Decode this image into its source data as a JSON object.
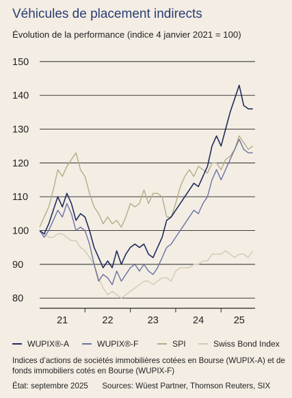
{
  "title": "Véhicules de placement indirects",
  "subtitle": "Évolution de la performance (indice 4 janvier 2021 = 100)",
  "note": "Indices d’actions de sociétés immobilières cotées en Bourse (WUPIX-A) et de fonds immobiliers cotés en Bourse (WUPIX-F)",
  "status": "État: septembre 2025",
  "sources": "Sources: Wüest Partner, Thomson Reuters, SIX",
  "chart_data": {
    "type": "line",
    "title": "Véhicules de placement indirects",
    "subtitle": "Évolution de la performance (indice 4 janvier 2021 = 100)",
    "xlabel": "",
    "ylabel": "",
    "xlim": [
      2021.0,
      2025.75
    ],
    "ylim": [
      77,
      152
    ],
    "yticks": [
      80,
      90,
      100,
      110,
      120,
      130,
      140,
      150
    ],
    "xticks": [
      {
        "label": "21",
        "x": 2021.5
      },
      {
        "label": "22",
        "x": 2022.5
      },
      {
        "label": "23",
        "x": 2023.5
      },
      {
        "label": "24",
        "x": 2024.5
      },
      {
        "label": "25",
        "x": 2025.4
      }
    ],
    "grid": "horizontal",
    "legend": "bottom",
    "colors": {
      "WUPIX-A": "#1e2a5a",
      "WUPIX-F": "#6a70a0",
      "SPI": "#b4ad86",
      "Swiss Bond Index": "#d1c9b0",
      "grid": "#222222",
      "title": "#2a3d73",
      "background": "#f3ede4"
    },
    "series": [
      {
        "name": "WUPIX®-A",
        "key": "WUPIX-A",
        "x": [
          2021.0,
          2021.1,
          2021.2,
          2021.3,
          2021.4,
          2021.5,
          2021.6,
          2021.7,
          2021.8,
          2021.9,
          2022.0,
          2022.1,
          2022.2,
          2022.3,
          2022.4,
          2022.5,
          2022.6,
          2022.7,
          2022.8,
          2022.9,
          2023.0,
          2023.1,
          2023.2,
          2023.3,
          2023.4,
          2023.5,
          2023.6,
          2023.7,
          2023.8,
          2023.9,
          2024.0,
          2024.1,
          2024.2,
          2024.3,
          2024.4,
          2024.5,
          2024.6,
          2024.7,
          2024.8,
          2024.9,
          2025.0,
          2025.1,
          2025.2,
          2025.3,
          2025.4,
          2025.5,
          2025.6,
          2025.7
        ],
        "values": [
          100,
          99,
          102,
          106,
          110,
          107,
          111,
          108,
          103,
          105,
          104,
          100,
          95,
          92,
          89,
          91,
          89,
          94,
          90,
          93,
          95,
          96,
          95,
          96,
          93,
          92,
          95,
          98,
          103,
          104,
          106,
          108,
          110,
          112,
          114,
          113,
          116,
          119,
          125,
          128,
          125,
          130,
          135,
          139,
          143,
          137,
          136,
          136
        ]
      },
      {
        "name": "WUPIX®-F",
        "key": "WUPIX-F",
        "x": [
          2021.0,
          2021.1,
          2021.2,
          2021.3,
          2021.4,
          2021.5,
          2021.6,
          2021.7,
          2021.8,
          2021.9,
          2022.0,
          2022.1,
          2022.2,
          2022.3,
          2022.4,
          2022.5,
          2022.6,
          2022.7,
          2022.8,
          2022.9,
          2023.0,
          2023.1,
          2023.2,
          2023.3,
          2023.4,
          2023.5,
          2023.6,
          2023.7,
          2023.8,
          2023.9,
          2024.0,
          2024.1,
          2024.2,
          2024.3,
          2024.4,
          2024.5,
          2024.6,
          2024.7,
          2024.8,
          2024.9,
          2025.0,
          2025.1,
          2025.2,
          2025.3,
          2025.4,
          2025.5,
          2025.6,
          2025.7
        ],
        "values": [
          100,
          98,
          100,
          103,
          106,
          104,
          108,
          105,
          100,
          101,
          100,
          96,
          90,
          85,
          87,
          86,
          84,
          88,
          85,
          87,
          89,
          90,
          88,
          90,
          88,
          87,
          89,
          92,
          95,
          96,
          98,
          100,
          102,
          104,
          106,
          105,
          108,
          110,
          115,
          118,
          115,
          118,
          121,
          124,
          127,
          124,
          123,
          123
        ]
      },
      {
        "name": "SPI",
        "key": "SPI",
        "x": [
          2021.0,
          2021.1,
          2021.2,
          2021.3,
          2021.4,
          2021.5,
          2021.6,
          2021.7,
          2021.8,
          2021.9,
          2022.0,
          2022.1,
          2022.2,
          2022.3,
          2022.4,
          2022.5,
          2022.6,
          2022.7,
          2022.8,
          2022.9,
          2023.0,
          2023.1,
          2023.2,
          2023.3,
          2023.4,
          2023.5,
          2023.6,
          2023.7,
          2023.8,
          2023.9,
          2024.0,
          2024.1,
          2024.2,
          2024.3,
          2024.4,
          2024.5,
          2024.6,
          2024.7,
          2024.8,
          2024.9,
          2025.0,
          2025.1,
          2025.2,
          2025.3,
          2025.4,
          2025.5,
          2025.6,
          2025.7
        ],
        "values": [
          101,
          104,
          107,
          112,
          118,
          116,
          119,
          121,
          123,
          118,
          116,
          111,
          107,
          105,
          102,
          104,
          102,
          103,
          101,
          104,
          108,
          107,
          108,
          112,
          108,
          111,
          111,
          110,
          104,
          104,
          108,
          113,
          116,
          118,
          116,
          119,
          118,
          117,
          120,
          120,
          118,
          121,
          122,
          124,
          128,
          126,
          124,
          125
        ]
      },
      {
        "name": "Swiss Bond Index",
        "key": "Swiss Bond Index",
        "x": [
          2021.0,
          2021.1,
          2021.2,
          2021.3,
          2021.4,
          2021.5,
          2021.6,
          2021.7,
          2021.8,
          2021.9,
          2022.0,
          2022.1,
          2022.2,
          2022.3,
          2022.4,
          2022.5,
          2022.6,
          2022.7,
          2022.8,
          2022.9,
          2023.0,
          2023.1,
          2023.2,
          2023.3,
          2023.4,
          2023.5,
          2023.6,
          2023.7,
          2023.8,
          2023.9,
          2024.0,
          2024.1,
          2024.2,
          2024.3,
          2024.4,
          2024.5,
          2024.6,
          2024.7,
          2024.8,
          2024.9,
          2025.0,
          2025.1,
          2025.2,
          2025.3,
          2025.4,
          2025.5,
          2025.6,
          2025.7
        ],
        "values": [
          100,
          99,
          98,
          98,
          99,
          99,
          98,
          97,
          97,
          95,
          94,
          92,
          90,
          86,
          83,
          81,
          82,
          81,
          80,
          81,
          82,
          83,
          84,
          85,
          85,
          84,
          85,
          86,
          86,
          85,
          88,
          89,
          89,
          89,
          90,
          90,
          91,
          91,
          93,
          93,
          93,
          94,
          93,
          92,
          93,
          93,
          92,
          94
        ]
      }
    ]
  }
}
